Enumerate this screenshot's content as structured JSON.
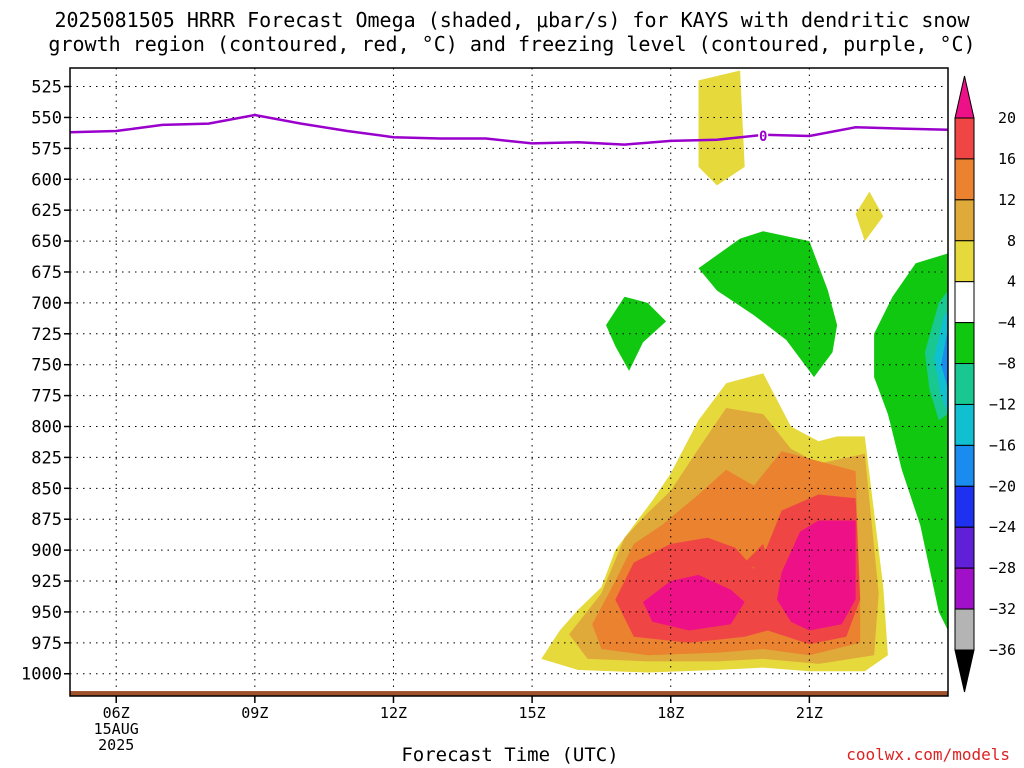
{
  "title": {
    "line1": "2025081505 HRRR Forecast Omega (shaded, μbar/s) for KAYS with dendritic snow",
    "line2": "growth region (contoured, red, °C) and freezing level (contoured, purple, °C)"
  },
  "credit": "coolwx.com/models",
  "chart_data": {
    "type": "heatmap",
    "xlabel": "Forecast Time (UTC)",
    "ylabel": "",
    "x_range_hours": [
      5,
      24
    ],
    "y_range_hpa": [
      1018,
      510
    ],
    "x_ticks": [
      {
        "hour": 6,
        "lines": [
          "06Z",
          "15AUG",
          "2025"
        ]
      },
      {
        "hour": 9,
        "lines": [
          "09Z"
        ]
      },
      {
        "hour": 12,
        "lines": [
          "12Z"
        ]
      },
      {
        "hour": 15,
        "lines": [
          "15Z"
        ]
      },
      {
        "hour": 18,
        "lines": [
          "18Z"
        ]
      },
      {
        "hour": 21,
        "lines": [
          "21Z"
        ]
      }
    ],
    "y_ticks": [
      525,
      550,
      575,
      600,
      625,
      650,
      675,
      700,
      725,
      750,
      775,
      800,
      825,
      850,
      875,
      900,
      925,
      950,
      975,
      1000
    ],
    "grid": "dotted",
    "freezing_level": {
      "label": "0",
      "label_at": [
        20.0,
        565
      ],
      "color": "#9900cc",
      "points": [
        [
          5,
          562
        ],
        [
          6,
          561
        ],
        [
          7,
          556
        ],
        [
          8,
          555
        ],
        [
          9,
          548
        ],
        [
          10,
          555
        ],
        [
          11,
          561
        ],
        [
          12,
          566
        ],
        [
          13,
          567
        ],
        [
          14,
          567
        ],
        [
          15,
          571
        ],
        [
          16,
          570
        ],
        [
          17,
          572
        ],
        [
          18,
          569
        ],
        [
          19,
          568
        ],
        [
          20,
          564
        ],
        [
          21,
          565
        ],
        [
          22,
          558
        ],
        [
          23,
          559
        ],
        [
          24,
          560
        ]
      ]
    },
    "ground": {
      "pressure_hpa": 1014,
      "color": "#a0522d"
    },
    "omega_shading": [
      {
        "level": "4 to 8",
        "color": "#e6d93c",
        "polygons": [
          [
            [
              15.2,
              988
            ],
            [
              15.6,
              965
            ],
            [
              16.0,
              948
            ],
            [
              16.5,
              930
            ],
            [
              16.8,
              900
            ],
            [
              17.2,
              880
            ],
            [
              17.6,
              860
            ],
            [
              18.0,
              838
            ],
            [
              18.6,
              795
            ],
            [
              19.2,
              765
            ],
            [
              20.0,
              757
            ],
            [
              20.6,
              800
            ],
            [
              21.2,
              812
            ],
            [
              21.6,
              808
            ],
            [
              22.2,
              808
            ],
            [
              22.6,
              930
            ],
            [
              22.7,
              985
            ],
            [
              22.2,
              998
            ],
            [
              21.0,
              998
            ],
            [
              20.0,
              995
            ],
            [
              19.0,
              997
            ],
            [
              17.5,
              999
            ],
            [
              16.0,
              997
            ]
          ],
          [
            [
              18.6,
              520
            ],
            [
              19.5,
              512
            ],
            [
              19.6,
              590
            ],
            [
              19.0,
              605
            ],
            [
              18.6,
              590
            ]
          ],
          [
            [
              22.0,
              628
            ],
            [
              22.3,
              610
            ],
            [
              22.6,
              630
            ],
            [
              22.2,
              650
            ]
          ]
        ]
      },
      {
        "level": "8 to 12",
        "color": "#dfaa3a",
        "polygons": [
          [
            [
              15.8,
              968
            ],
            [
              16.5,
              935
            ],
            [
              17.0,
              890
            ],
            [
              17.5,
              870
            ],
            [
              18.0,
              852
            ],
            [
              18.6,
              818
            ],
            [
              19.2,
              785
            ],
            [
              20.0,
              790
            ],
            [
              20.6,
              818
            ],
            [
              21.2,
              830
            ],
            [
              22.2,
              822
            ],
            [
              22.5,
              935
            ],
            [
              22.4,
              985
            ],
            [
              21.2,
              992
            ],
            [
              20.0,
              988
            ],
            [
              19.0,
              990
            ],
            [
              17.5,
              990
            ],
            [
              16.2,
              988
            ]
          ]
        ]
      },
      {
        "level": "12 to 16",
        "color": "#ea8230",
        "polygons": [
          [
            [
              16.3,
              960
            ],
            [
              16.8,
              925
            ],
            [
              17.2,
              895
            ],
            [
              17.8,
              880
            ],
            [
              18.6,
              855
            ],
            [
              19.2,
              835
            ],
            [
              19.8,
              848
            ],
            [
              20.4,
              820
            ],
            [
              21.2,
              828
            ],
            [
              22.0,
              836
            ],
            [
              22.1,
              940
            ],
            [
              22.1,
              975
            ],
            [
              21.0,
              985
            ],
            [
              20.0,
              980
            ],
            [
              19.0,
              983
            ],
            [
              17.5,
              985
            ],
            [
              16.5,
              980
            ]
          ]
        ]
      },
      {
        "level": "16 to 20",
        "color": "#f04545",
        "polygons": [
          [
            [
              16.8,
              940
            ],
            [
              17.2,
              910
            ],
            [
              18.0,
              895
            ],
            [
              18.8,
              890
            ],
            [
              19.4,
              898
            ],
            [
              19.8,
              915
            ],
            [
              20.0,
              905
            ],
            [
              20.4,
              868
            ],
            [
              21.2,
              855
            ],
            [
              22.0,
              858
            ],
            [
              22.1,
              940
            ],
            [
              21.8,
              970
            ],
            [
              21.0,
              976
            ],
            [
              20.1,
              965
            ],
            [
              19.6,
              970
            ],
            [
              18.4,
              975
            ],
            [
              17.2,
              970
            ]
          ],
          [
            [
              19.6,
              910
            ],
            [
              20.0,
              895
            ],
            [
              20.2,
              922
            ]
          ]
        ]
      },
      {
        "level": ">20",
        "color": "#ee1087",
        "polygons": [
          [
            [
              17.4,
              942
            ],
            [
              18.0,
              925
            ],
            [
              18.6,
              920
            ],
            [
              19.3,
              932
            ],
            [
              19.6,
              942
            ],
            [
              19.3,
              960
            ],
            [
              18.4,
              965
            ],
            [
              17.6,
              958
            ]
          ],
          [
            [
              20.4,
              918
            ],
            [
              20.8,
              885
            ],
            [
              21.2,
              876
            ],
            [
              22.0,
              876
            ],
            [
              22.0,
              940
            ],
            [
              21.7,
              960
            ],
            [
              21.0,
              965
            ],
            [
              20.6,
              958
            ],
            [
              20.3,
              940
            ]
          ]
        ]
      },
      {
        "level": "-8 to -4",
        "color": "#10c810",
        "polygons": [
          [
            [
              16.6,
              718
            ],
            [
              17.0,
              695
            ],
            [
              17.5,
              700
            ],
            [
              17.9,
              715
            ],
            [
              17.4,
              732
            ],
            [
              17.1,
              755
            ],
            [
              16.8,
              735
            ]
          ],
          [
            [
              18.6,
              672
            ],
            [
              19.5,
              648
            ],
            [
              20.0,
              642
            ],
            [
              21.0,
              650
            ],
            [
              21.4,
              690
            ],
            [
              21.6,
              718
            ],
            [
              21.5,
              740
            ],
            [
              21.1,
              760
            ],
            [
              20.5,
              730
            ],
            [
              19.8,
              710
            ],
            [
              19.0,
              690
            ]
          ],
          [
            [
              22.4,
              725
            ],
            [
              22.8,
              695
            ],
            [
              23.3,
              668
            ],
            [
              24.0,
              660
            ],
            [
              24.0,
              965
            ],
            [
              23.8,
              950
            ],
            [
              23.4,
              880
            ],
            [
              23.0,
              835
            ],
            [
              22.7,
              790
            ],
            [
              22.4,
              760
            ]
          ]
        ]
      },
      {
        "level": "-12 to -8",
        "color": "#19c890",
        "polygons": [
          [
            [
              23.5,
              740
            ],
            [
              23.8,
              700
            ],
            [
              24.0,
              690
            ],
            [
              24.0,
              790
            ],
            [
              23.8,
              795
            ],
            [
              23.6,
              770
            ]
          ]
        ]
      },
      {
        "level": "-16 to -12",
        "color": "#10c0d0",
        "polygons": [
          [
            [
              23.7,
              745
            ],
            [
              23.9,
              712
            ],
            [
              24.0,
              705
            ],
            [
              24.0,
              790
            ],
            [
              23.85,
              775
            ]
          ]
        ]
      },
      {
        "level": "-20 to -16",
        "color": "#1a8cf0",
        "polygons": [
          [
            [
              23.85,
              750
            ],
            [
              24.0,
              720
            ],
            [
              24.0,
              770
            ]
          ]
        ]
      }
    ],
    "colorbar": {
      "labels": [
        "20",
        "16",
        "12",
        "8",
        "4",
        "−4",
        "−8",
        "−12",
        "−16",
        "−20",
        "−24",
        "−28",
        "−32",
        "−36"
      ],
      "colors": [
        "#ee1087",
        "#f04545",
        "#ea8230",
        "#dfaa3a",
        "#e6d93c",
        "#ffffff",
        "#10c810",
        "#19c890",
        "#10c0d0",
        "#1a8cf0",
        "#1e30f0",
        "#6020d8",
        "#a010c8",
        "#b4b4b4",
        "#000000"
      ]
    }
  }
}
